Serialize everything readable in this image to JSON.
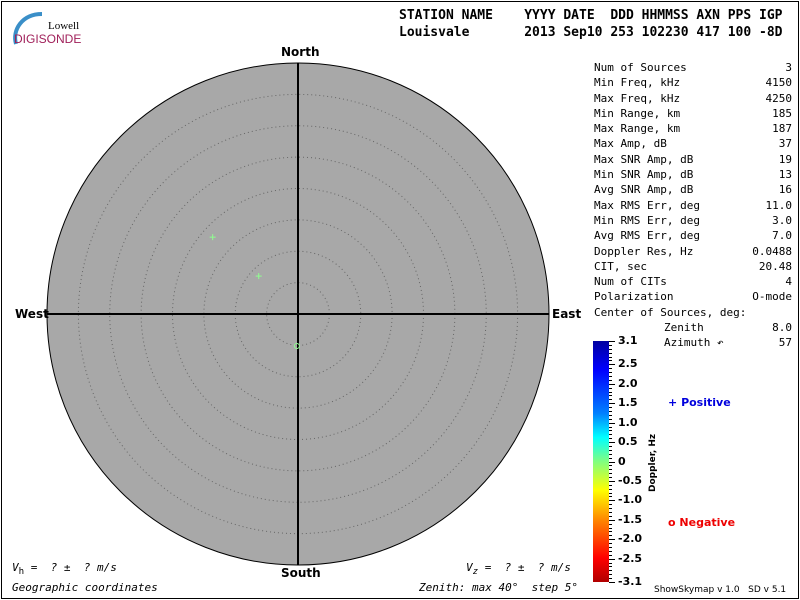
{
  "logo": {
    "line1": "Lowell",
    "line2": "DIGISONDE"
  },
  "header": {
    "labels": "STATION NAME    YYYY DATE  DDD HHMMSS AXN PPS IGP",
    "values": "Louisvale       2013 Sep10 253 102230 417 100 -8D"
  },
  "directions": {
    "north": "North",
    "south": "South",
    "east": "East",
    "west": "West"
  },
  "stats": [
    {
      "label": "Num of Sources",
      "value": "3"
    },
    {
      "label": "Min Freq, kHz",
      "value": "4150"
    },
    {
      "label": "Max Freq, kHz",
      "value": "4250"
    },
    {
      "label": "Min Range, km",
      "value": "185"
    },
    {
      "label": "Max Range, km",
      "value": "187"
    },
    {
      "label": "Max Amp, dB",
      "value": "37"
    },
    {
      "label": "Max SNR Amp, dB",
      "value": "19"
    },
    {
      "label": "Min SNR Amp, dB",
      "value": "13"
    },
    {
      "label": "Avg SNR Amp, dB",
      "value": "16"
    },
    {
      "label": "Max RMS Err, deg",
      "value": "11.0"
    },
    {
      "label": "Min RMS Err, deg",
      "value": "3.0"
    },
    {
      "label": "Avg RMS Err, deg",
      "value": "7.0"
    },
    {
      "label": "Doppler Res, Hz",
      "value": "0.0488"
    },
    {
      "label": "CIT, sec",
      "value": "20.48"
    },
    {
      "label": "Num of CITs",
      "value": "4"
    },
    {
      "label": "Polarization",
      "value": "O-mode"
    }
  ],
  "center": {
    "title": "Center of Sources, deg:",
    "zenith_label": "Zenith",
    "zenith": "8.0",
    "azimuth_label": "Azimuth ↶",
    "azimuth": "57"
  },
  "colorbar": {
    "title": "Doppler, Hz",
    "ticks": [
      "3.1",
      "2.5",
      "2.0",
      "1.5",
      "1.0",
      "0.5",
      "0",
      "-0.5",
      "-1.0",
      "-1.5",
      "-2.0",
      "-2.5",
      "-3.1"
    ]
  },
  "legend": {
    "positive": "Positive",
    "negative": "Negative",
    "positive_symbol": "+",
    "negative_symbol": "o",
    "positive_color": "#0000dd",
    "negative_color": "#ee0000"
  },
  "bottom": {
    "vh_sym": "V",
    "vh_sub": "h",
    "vz_sym": "V",
    "vz_sub": "z",
    "vel": " =  ? ±  ? m/s",
    "coords": "Geographic coordinates",
    "zenith": "Zenith: max 40°  step 5°"
  },
  "version": "ShowSkymap v 1.0   SD v 5.1",
  "skymap": {
    "zenith_max": 40,
    "zenith_step": 5,
    "background": "#a8a8a8",
    "sources": [
      {
        "zenith": 18.3,
        "azimuth": 312,
        "symbol": "+",
        "doppler": 0.3
      },
      {
        "zenith": 8.7,
        "azimuth": 314,
        "symbol": "+",
        "doppler": 0.3
      },
      {
        "zenith": 5.1,
        "azimuth": 182,
        "symbol": "o",
        "doppler": -0.3
      }
    ]
  }
}
